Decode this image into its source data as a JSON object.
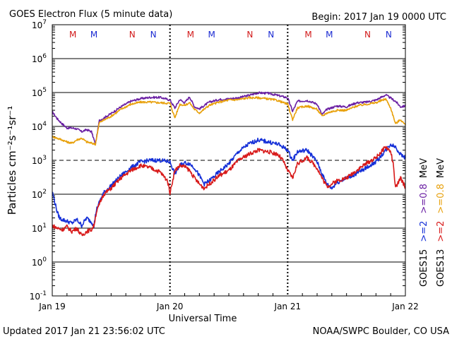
{
  "header": {
    "title": "GOES Electron Flux (5 minute data)",
    "begin": "Begin: 2017 Jan 19 0000 UTC"
  },
  "footer": {
    "updated": "Updated 2017 Jan 21 23:56:02 UTC",
    "credit": "NOAA/SWPC Boulder, CO USA"
  },
  "chart_data": {
    "type": "line",
    "title": "GOES Electron Flux (5 minute data)",
    "xlabel": "Universal Time",
    "ylabel": "Particles cm⁻²s⁻¹sr⁻¹",
    "y_scale": "log",
    "xlim": [
      0,
      72
    ],
    "ylim": [
      0.1,
      10000000
    ],
    "y_ticks": [
      {
        "value": 0.1,
        "base": "10",
        "exp": "-1"
      },
      {
        "value": 1,
        "base": "10",
        "exp": "0"
      },
      {
        "value": 10,
        "base": "10",
        "exp": "1"
      },
      {
        "value": 100,
        "base": "10",
        "exp": "2"
      },
      {
        "value": 1000,
        "base": "10",
        "exp": "3"
      },
      {
        "value": 10000,
        "base": "10",
        "exp": "4"
      },
      {
        "value": 100000,
        "base": "10",
        "exp": "5"
      },
      {
        "value": 1000000,
        "base": "10",
        "exp": "6"
      },
      {
        "value": 10000000,
        "base": "10",
        "exp": "7"
      }
    ],
    "x_ticks": [
      {
        "value": 0,
        "label": "Jan 19"
      },
      {
        "value": 24,
        "label": "Jan 20"
      },
      {
        "value": 48,
        "label": "Jan 21"
      },
      {
        "value": 72,
        "label": "Jan 22"
      }
    ],
    "threshold": 1000,
    "markers": [
      {
        "x": 4.2,
        "label": "M",
        "color": "#d21a1a"
      },
      {
        "x": 8.5,
        "label": "M",
        "color": "#1a2ad2"
      },
      {
        "x": 16.3,
        "label": "N",
        "color": "#d21a1a"
      },
      {
        "x": 20.6,
        "label": "N",
        "color": "#1a2ad2"
      },
      {
        "x": 28.2,
        "label": "M",
        "color": "#d21a1a"
      },
      {
        "x": 32.5,
        "label": "M",
        "color": "#1a2ad2"
      },
      {
        "x": 40.3,
        "label": "N",
        "color": "#d21a1a"
      },
      {
        "x": 44.6,
        "label": "N",
        "color": "#1a2ad2"
      },
      {
        "x": 52.2,
        "label": "M",
        "color": "#d21a1a"
      },
      {
        "x": 56.5,
        "label": "M",
        "color": "#1a2ad2"
      },
      {
        "x": 64.3,
        "label": "N",
        "color": "#d21a1a"
      },
      {
        "x": 68.6,
        "label": "N",
        "color": "#1a2ad2"
      }
    ],
    "right_labels": {
      "goes15": {
        "satellite": "GOES15",
        "low": ">=2",
        "high": ">=0.8",
        "unit": "MeV"
      },
      "goes13": {
        "satellite": "GOES13",
        "low": ">=2",
        "high": ">=0.8",
        "unit": "MeV"
      }
    },
    "series": [
      {
        "name": "GOES15 >=0.8 MeV",
        "color": "#6a1fa3",
        "x": [
          0,
          1,
          2,
          3,
          4,
          5,
          6,
          7,
          8,
          8.8,
          9.6,
          10,
          12,
          14,
          16,
          18,
          20,
          22,
          24,
          25,
          26,
          27,
          28,
          29,
          30,
          32,
          34,
          36,
          38,
          40,
          42,
          44,
          46,
          48,
          49,
          50,
          52,
          54,
          55,
          56,
          58,
          60,
          62,
          64,
          66,
          68,
          70,
          71,
          72
        ],
        "y": [
          27000,
          17000,
          12000,
          9000,
          9000,
          8500,
          7000,
          8000,
          7000,
          3000,
          15000,
          16000,
          24000,
          38000,
          55000,
          66000,
          72000,
          72000,
          60000,
          35000,
          62000,
          50000,
          75000,
          38000,
          33000,
          52000,
          62000,
          65000,
          70000,
          82000,
          98000,
          95000,
          82000,
          70000,
          28000,
          55000,
          58000,
          46000,
          22000,
          32000,
          40000,
          38000,
          50000,
          52000,
          60000,
          85000,
          55000,
          38000,
          40000
        ]
      },
      {
        "name": "GOES13 >=0.8 MeV",
        "color": "#e8a10c",
        "x": [
          0,
          1,
          2,
          3,
          4,
          5,
          6,
          7,
          8,
          8.8,
          9.6,
          10,
          12,
          14,
          16,
          18,
          20,
          22,
          24,
          25,
          26,
          27,
          28,
          29,
          30,
          32,
          34,
          36,
          38,
          40,
          42,
          44,
          46,
          48,
          49,
          50,
          52,
          54,
          55,
          56,
          58,
          60,
          62,
          64,
          66,
          68,
          69,
          70,
          71,
          72
        ],
        "y": [
          5000,
          4500,
          4000,
          3500,
          3200,
          4000,
          4500,
          3500,
          3200,
          3000,
          13000,
          14000,
          20000,
          32000,
          45000,
          52000,
          52000,
          50000,
          48000,
          18000,
          45000,
          42000,
          50000,
          32000,
          25000,
          42000,
          52000,
          60000,
          62000,
          70000,
          70000,
          65000,
          58000,
          45000,
          16000,
          35000,
          40000,
          32000,
          20000,
          25000,
          30000,
          30000,
          40000,
          45000,
          50000,
          65000,
          35000,
          12000,
          16000,
          11000
        ]
      },
      {
        "name": "GOES15 >=2 MeV",
        "color": "#1530d8",
        "x": [
          0,
          0.5,
          1,
          1.5,
          2,
          3,
          4,
          5,
          6,
          7,
          8,
          8.5,
          9,
          10,
          10.5,
          12,
          14,
          16,
          18,
          20,
          22,
          24,
          25,
          26,
          27,
          28,
          29,
          30,
          31,
          32,
          34,
          36,
          38,
          40,
          42,
          44,
          46,
          47,
          48,
          49,
          50,
          52,
          54,
          55,
          56,
          57,
          58,
          60,
          62,
          64,
          66,
          68,
          69,
          70,
          71,
          72
        ],
        "y": [
          120,
          60,
          30,
          20,
          18,
          16,
          14,
          18,
          12,
          20,
          15,
          12,
          35,
          80,
          110,
          180,
          350,
          600,
          900,
          1000,
          1000,
          900,
          400,
          700,
          850,
          800,
          600,
          350,
          200,
          250,
          450,
          800,
          1800,
          3000,
          4000,
          3500,
          3000,
          2500,
          2000,
          1000,
          1800,
          2000,
          900,
          400,
          200,
          150,
          220,
          300,
          400,
          600,
          900,
          2000,
          3000,
          2500,
          1500,
          1200
        ]
      },
      {
        "name": "GOES13 >=2 MeV",
        "color": "#d81a1a",
        "x": [
          0,
          1,
          2,
          3,
          4,
          5,
          6,
          7,
          8,
          8.5,
          9,
          10,
          10.5,
          12,
          14,
          16,
          18,
          20,
          22,
          23.5,
          24,
          25,
          26,
          27,
          28,
          29,
          30,
          31,
          32,
          34,
          36,
          38,
          40,
          42,
          44,
          46,
          47,
          48,
          49,
          50,
          52,
          54,
          55,
          56,
          57,
          58,
          60,
          62,
          64,
          66,
          68,
          69,
          69.5,
          70,
          71,
          72
        ],
        "y": [
          12,
          10,
          9,
          11,
          8,
          10,
          6,
          8,
          9,
          12,
          30,
          70,
          100,
          150,
          300,
          500,
          700,
          600,
          450,
          250,
          110,
          500,
          700,
          650,
          500,
          300,
          200,
          150,
          200,
          350,
          500,
          1000,
          1500,
          2000,
          1800,
          1500,
          1000,
          500,
          300,
          800,
          1200,
          600,
          300,
          170,
          200,
          250,
          300,
          500,
          800,
          1200,
          2500,
          1800,
          800,
          150,
          300,
          160
        ]
      }
    ]
  }
}
